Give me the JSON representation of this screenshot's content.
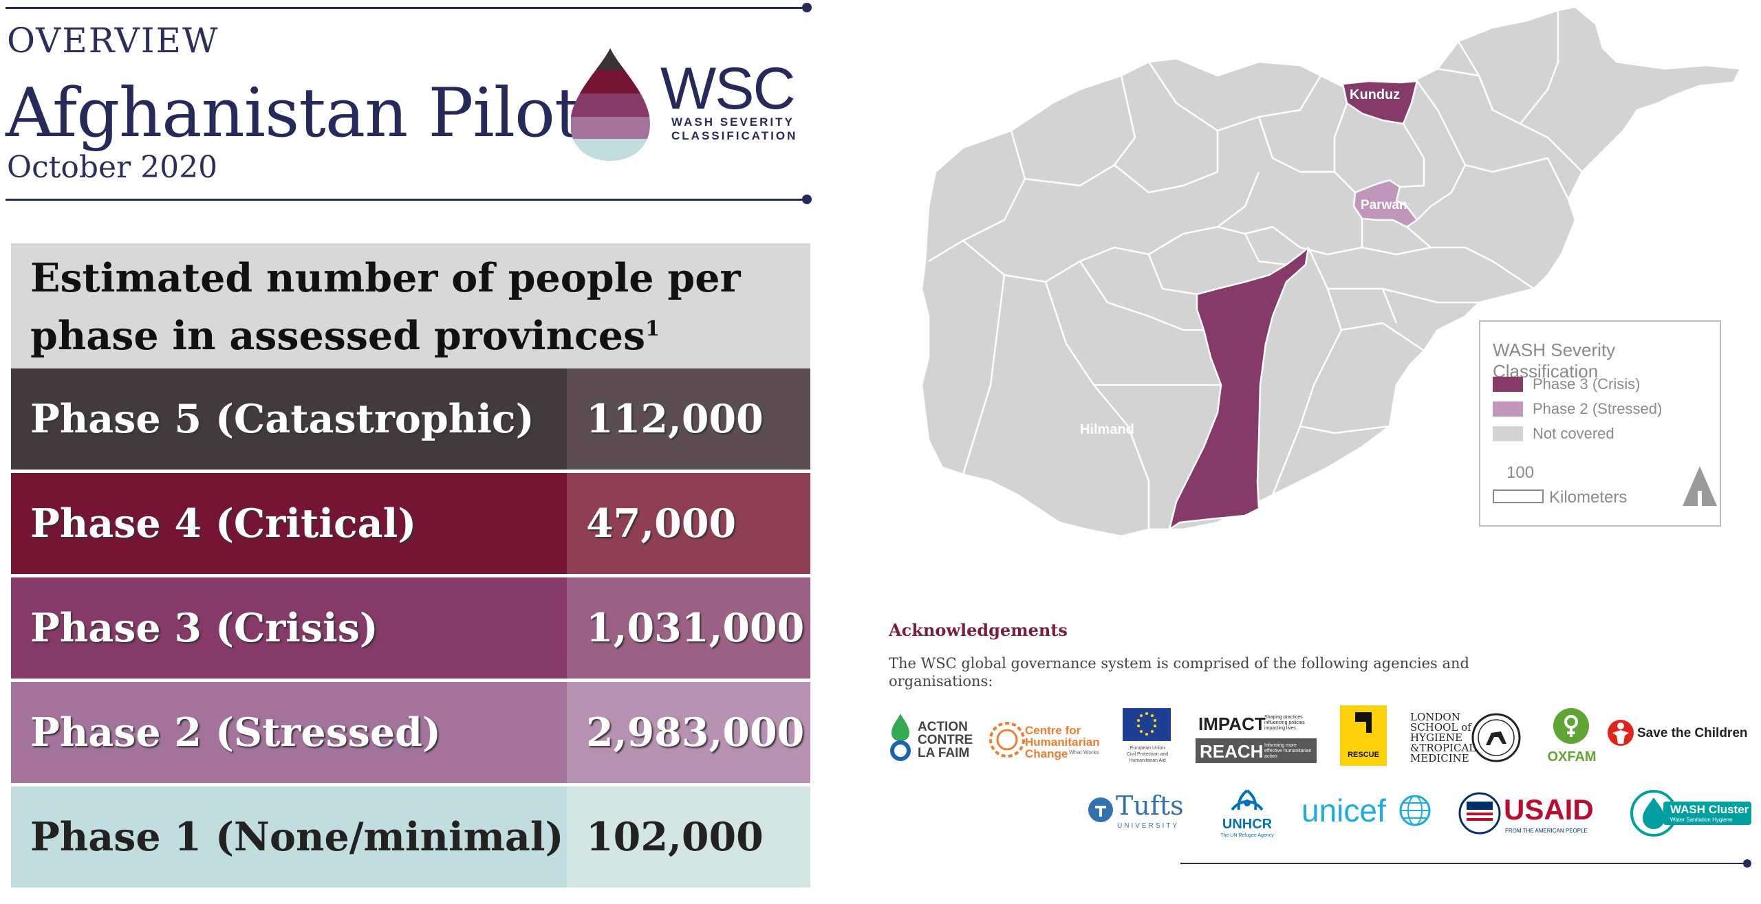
{
  "header": {
    "overview": "OVERVIEW",
    "title": "Afghanistan Pilot",
    "date": "October 2020"
  },
  "wsc_logo": {
    "abbr": "WSC",
    "line1": "WASH SEVERITY",
    "line2": "CLASSIFICATION"
  },
  "table": {
    "heading_line1": "Estimated number of people per",
    "heading_line2": "phase in assessed provinces",
    "footnote": "1",
    "rows": [
      {
        "label": "Phase 5 (Catastrophic)",
        "value": "112,000",
        "label_color": "#433a3e",
        "value_color": "#5c4d53",
        "text": "light"
      },
      {
        "label": "Phase 4 (Critical)",
        "value": "47,000",
        "label_color": "#761533",
        "value_color": "#8e3f52",
        "text": "light"
      },
      {
        "label": "Phase 3 (Crisis)",
        "value": "1,031,000",
        "label_color": "#853a67",
        "value_color": "#9a6185",
        "text": "light"
      },
      {
        "label": "Phase 2 (Stressed)",
        "value": "2,983,000",
        "label_color": "#a3739b",
        "value_color": "#b791b0",
        "text": "light"
      },
      {
        "label": "Phase 1 (None/minimal)",
        "value": "102,000",
        "label_color": "#c2dddd",
        "value_color": "#d3e6e4",
        "text": "dark"
      }
    ]
  },
  "map": {
    "labels": {
      "kunduz": "Kunduz",
      "parwan": "Parwan",
      "hilmand": "Hilmand"
    },
    "colors": {
      "crisis": "#853a67",
      "stressed": "#c096bb",
      "not_covered": "#d3d3d3"
    }
  },
  "legend": {
    "title": "WASH Severity Classification",
    "items": [
      {
        "label": "Phase 3 (Crisis)",
        "color": "#853a67"
      },
      {
        "label": "Phase 2 (Stressed)",
        "color": "#c096bb"
      },
      {
        "label": "Not covered",
        "color": "#d3d3d3"
      }
    ],
    "scale_value": "100",
    "scale_unit": "Kilometers"
  },
  "acknowledgements": {
    "title": "Acknowledgements",
    "text": "The WSC global governance system is comprised of the following agencies and organisations:",
    "logos": {
      "acf": [
        "ACTION",
        "CONTRE",
        "LA FAIM"
      ],
      "chc": [
        "Centre for",
        "Humanitarian",
        "Change"
      ],
      "chc_tag": "What Works",
      "echo": [
        "European Union",
        "Civil Protection and",
        "Humanitarian Aid"
      ],
      "impact": "IMPACT",
      "impact_tag": "Shaping practices influencing policies impacting lives",
      "reach": "REACH",
      "reach_tag": "Informing more effective humanitarian action",
      "irc": "RESCUE",
      "lshtm": [
        "LONDON",
        "SCHOOL of",
        "HYGIENE",
        "&TROPICAL",
        "MEDICINE"
      ],
      "oxfam": "OXFAM",
      "stc": "Save the Children",
      "tufts": "Tufts",
      "tufts_sub": "UNIVERSITY",
      "unhcr": "UNHCR",
      "unhcr_sub": "The UN Refugee Agency",
      "unicef": "unicef",
      "usaid": "USAID",
      "usaid_sub": "FROM THE AMERICAN PEOPLE",
      "wash": "WASH Cluster",
      "wash_sub": "Water Sanitation Hygiene"
    }
  }
}
